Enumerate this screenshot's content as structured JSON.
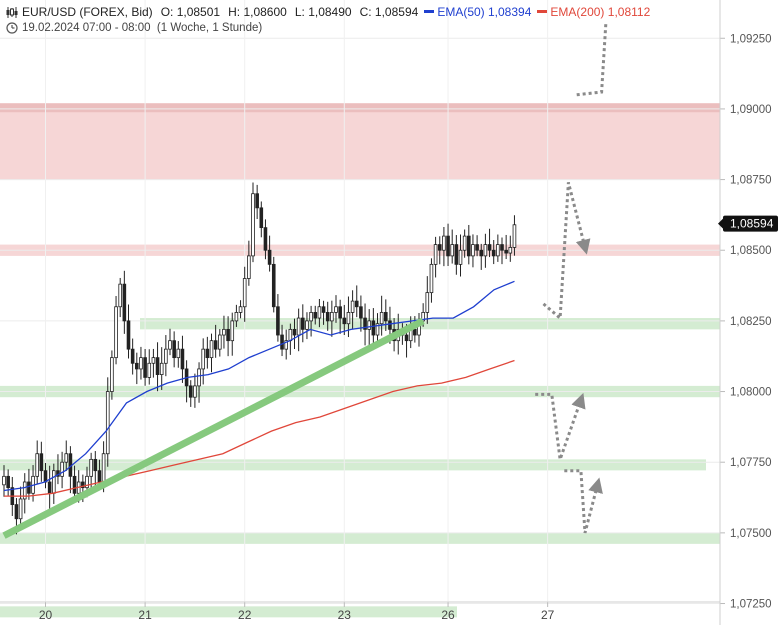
{
  "header": {
    "symbol": "EUR/USD (FOREX, Bid)",
    "open_label": "O:",
    "open": "1,08501",
    "high_label": "H:",
    "high": "1,08600",
    "low_label": "L:",
    "low": "1,08490",
    "close_label": "C:",
    "close": "1,08594",
    "ema50_label": "EMA(50)",
    "ema50_value": "1,08394",
    "ema200_label": "EMA(200)",
    "ema200_value": "1,08112",
    "timestamp": "19.02.2024 07:00 - 08:00",
    "interval": "(1 Woche, 1 Stunde)",
    "icons": [
      "candlestick-icon",
      "clock-icon"
    ]
  },
  "colors": {
    "ema50": "#1f3fcf",
    "ema200": "#e0473a",
    "resistance_zone": "#f6d6d6",
    "support_zone": "#d4ecd2",
    "trendline": "#86c97e",
    "projection": "#8a8a8a",
    "price_box": "#111111"
  },
  "chart_data": {
    "type": "candlestick",
    "y_axis": {
      "range": [
        1.0722,
        1.0935
      ],
      "ticks": [
        1.0725,
        1.075,
        1.0775,
        1.08,
        1.0825,
        1.085,
        1.0875,
        1.09,
        1.0925
      ],
      "tick_labels": [
        "1,07250",
        "1,07500",
        "1,07750",
        "1,08000",
        "1,08250",
        "1,08500",
        "1,08750",
        "1,09000",
        "1,09250"
      ],
      "position": "right"
    },
    "x_axis": {
      "tick_labels": [
        "20",
        "21",
        "22",
        "23",
        "26",
        "27"
      ],
      "tick_index": [
        10,
        34,
        58,
        82,
        107,
        131
      ]
    },
    "current_price": 1.08594,
    "current_price_label": "1,08594",
    "closes": [
      1.077,
      1.0766,
      1.076,
      1.0755,
      1.0762,
      1.0768,
      1.0764,
      1.077,
      1.0778,
      1.0772,
      1.0768,
      1.0764,
      1.0772,
      1.077,
      1.0775,
      1.0778,
      1.077,
      1.0764,
      1.0768,
      1.0766,
      1.077,
      1.0776,
      1.0772,
      1.0768,
      1.0778,
      1.08,
      1.0812,
      1.083,
      1.0838,
      1.0825,
      1.0815,
      1.081,
      1.0808,
      1.0812,
      1.0805,
      1.081,
      1.0812,
      1.0806,
      1.081,
      1.0815,
      1.0818,
      1.0812,
      1.0815,
      1.0808,
      1.0802,
      1.0798,
      1.0802,
      1.0808,
      1.0815,
      1.0812,
      1.0818,
      1.0815,
      1.082,
      1.0822,
      1.0818,
      1.0825,
      1.0828,
      1.083,
      1.084,
      1.0848,
      1.087,
      1.0865,
      1.0858,
      1.085,
      1.0845,
      1.083,
      1.082,
      1.0815,
      1.0818,
      1.0822,
      1.082,
      1.0826,
      1.0822,
      1.0825,
      1.0828,
      1.0826,
      1.083,
      1.0828,
      1.0825,
      1.0828,
      1.083,
      1.0826,
      1.0824,
      1.0828,
      1.0832,
      1.083,
      1.0826,
      1.0822,
      1.0825,
      1.082,
      1.0824,
      1.0828,
      1.0825,
      1.0822,
      1.0818,
      1.0822,
      1.082,
      1.0818,
      1.0822,
      1.082,
      1.0825,
      1.0828,
      1.0835,
      1.0845,
      1.0852,
      1.085,
      1.0855,
      1.0848,
      1.0852,
      1.0845,
      1.085,
      1.0855,
      1.0848,
      1.0852,
      1.085,
      1.0848,
      1.0852,
      1.085,
      1.0848,
      1.0852,
      1.085,
      1.0849,
      1.0851,
      1.0859
    ],
    "ema50": [
      1.0765,
      1.0766,
      1.0768,
      1.0772,
      1.0778,
      1.0786,
      1.0796,
      1.08,
      1.0803,
      1.0805,
      1.0806,
      1.0808,
      1.0812,
      1.0815,
      1.0818,
      1.0822,
      1.082,
      1.0822,
      1.0823,
      1.0824,
      1.0825,
      1.0826,
      1.0826,
      1.083,
      1.0836,
      1.0839
    ],
    "ema200": [
      1.0763,
      1.0763,
      1.0764,
      1.0766,
      1.0768,
      1.077,
      1.0772,
      1.0774,
      1.0776,
      1.0778,
      1.0782,
      1.0786,
      1.0789,
      1.0791,
      1.0794,
      1.0797,
      1.08,
      1.0802,
      1.0803,
      1.0805,
      1.0808,
      1.0811
    ],
    "resistance_zones": [
      [
        1.0875,
        1.0902
      ],
      [
        1.0848,
        1.0852
      ]
    ],
    "support_zones": [
      [
        1.0822,
        1.0826
      ],
      [
        1.0798,
        1.0802
      ],
      [
        1.0774,
        1.0776
      ],
      [
        1.0748,
        1.075
      ],
      [
        1.0722,
        1.0724
      ]
    ],
    "trendline": [
      [
        0,
        1.0749
      ],
      [
        101,
        1.0825
      ]
    ],
    "projections": [
      [
        [
          1.0831,
          130
        ],
        [
          1.0826,
          134
        ],
        [
          1.0874,
          136
        ],
        [
          1.0851,
          140
        ]
      ],
      [
        [
          1.0905,
          138
        ],
        [
          1.0906,
          144
        ],
        [
          1.093,
          145
        ]
      ],
      [
        [
          1.0799,
          128
        ],
        [
          1.0799,
          132
        ],
        [
          1.0776,
          134
        ],
        [
          1.0797,
          139
        ]
      ],
      [
        [
          1.0772,
          135
        ],
        [
          1.0772,
          139
        ],
        [
          1.075,
          140
        ],
        [
          1.0767,
          143
        ]
      ]
    ]
  }
}
